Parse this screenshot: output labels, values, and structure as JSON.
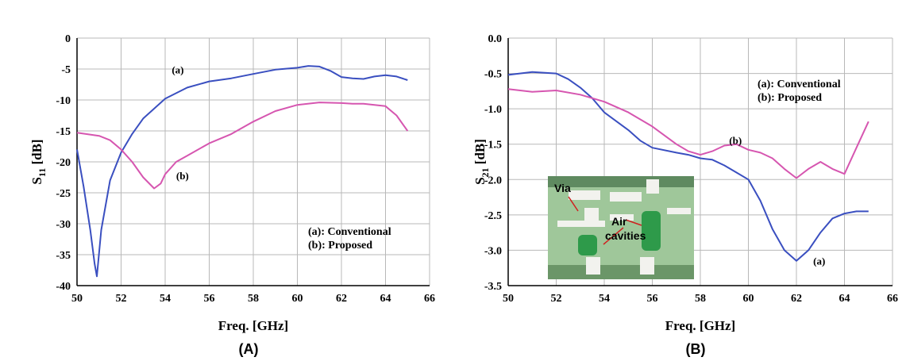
{
  "chart_data": [
    {
      "type": "line",
      "panel_label": "(A)",
      "xlabel": "Freq. [GHz]",
      "ylabel_main": "S",
      "ylabel_sub": "11",
      "ylabel_unit": " [dB]",
      "xlim": [
        50,
        66
      ],
      "ylim": [
        -40,
        0
      ],
      "xticks": [
        50,
        52,
        54,
        56,
        58,
        60,
        62,
        64,
        66
      ],
      "yticks": [
        0,
        -5,
        -10,
        -15,
        -20,
        -25,
        -30,
        -35,
        -40
      ],
      "ytick_labels": [
        "0",
        "-5",
        "-10",
        "-15",
        "-20",
        "-25",
        "-30",
        "-35",
        "-40"
      ],
      "grid": true,
      "legend": [
        "(a): Conventional",
        "(b): Proposed"
      ],
      "legend_position": "bottom-right",
      "series": [
        {
          "label": "(a)",
          "color": "#3a4fc0",
          "x": [
            50,
            50.3,
            50.6,
            50.8,
            50.9,
            51.1,
            51.5,
            52,
            52.5,
            53,
            54,
            55,
            56,
            57,
            58,
            59,
            60,
            60.5,
            61,
            61.5,
            62,
            62.5,
            63,
            63.5,
            64,
            64.5,
            65
          ],
          "y": [
            -18,
            -24,
            -31,
            -36.5,
            -38.5,
            -31,
            -23,
            -18.5,
            -15.5,
            -13,
            -9.8,
            -8,
            -7,
            -6.5,
            -5.8,
            -5.1,
            -4.8,
            -4.5,
            -4.6,
            -5.3,
            -6.3,
            -6.5,
            -6.6,
            -6.2,
            -6,
            -6.2,
            -6.8
          ]
        },
        {
          "label": "(b)",
          "color": "#d656b0",
          "x": [
            50,
            51,
            51.5,
            52,
            52.5,
            53,
            53.5,
            53.8,
            54,
            54.5,
            55,
            56,
            57,
            58,
            59,
            60,
            61,
            62,
            62.5,
            63,
            64,
            64.5,
            65
          ],
          "y": [
            -15.3,
            -15.8,
            -16.5,
            -18,
            -20,
            -22.5,
            -24.3,
            -23.5,
            -22,
            -20,
            -19,
            -17,
            -15.5,
            -13.5,
            -11.8,
            -10.8,
            -10.4,
            -10.5,
            -10.6,
            -10.6,
            -11,
            -12.5,
            -15
          ]
        }
      ],
      "annotations": [
        {
          "text": "(a)",
          "x": 54.3,
          "y": -5.7
        },
        {
          "text": "(b)",
          "x": 54.5,
          "y": -22.8
        }
      ]
    },
    {
      "type": "line",
      "panel_label": "(B)",
      "xlabel": "Freq. [GHz]",
      "ylabel_main": "S",
      "ylabel_sub": "21",
      "ylabel_unit": " [dB]",
      "xlim": [
        50,
        66
      ],
      "ylim": [
        -3.5,
        0
      ],
      "xticks": [
        50,
        52,
        54,
        56,
        58,
        60,
        62,
        64,
        66
      ],
      "yticks": [
        0,
        -0.5,
        -1,
        -1.5,
        -2,
        -2.5,
        -3,
        -3.5
      ],
      "ytick_labels": [
        "0.0",
        "-0.5",
        "-1.0",
        "-1.5",
        "-2.0",
        "-2.5",
        "-3.0",
        "-3.5"
      ],
      "grid": true,
      "legend": [
        "(a): Conventional",
        "(b): Proposed"
      ],
      "legend_position": "top-right",
      "series": [
        {
          "label": "(a)",
          "color": "#3a4fc0",
          "x": [
            50,
            51,
            52,
            52.5,
            53,
            53.5,
            54,
            55,
            55.5,
            56,
            57,
            57.5,
            58,
            58.5,
            59,
            59.5,
            60,
            60.5,
            61,
            61.5,
            62,
            62.5,
            63,
            63.5,
            64,
            64.5,
            65
          ],
          "y": [
            -0.52,
            -0.48,
            -0.5,
            -0.58,
            -0.7,
            -0.85,
            -1.05,
            -1.3,
            -1.45,
            -1.55,
            -1.62,
            -1.65,
            -1.7,
            -1.72,
            -1.8,
            -1.9,
            -2.0,
            -2.3,
            -2.7,
            -3.0,
            -3.15,
            -3.0,
            -2.75,
            -2.55,
            -2.48,
            -2.45,
            -2.45
          ]
        },
        {
          "label": "(b)",
          "color": "#d656b0",
          "x": [
            50,
            51,
            52,
            53,
            54,
            55,
            56,
            57,
            57.5,
            58,
            58.5,
            59,
            59.5,
            60,
            60.5,
            61,
            61.5,
            62,
            62.5,
            63,
            63.5,
            64,
            64.5,
            65
          ],
          "y": [
            -0.72,
            -0.76,
            -0.74,
            -0.8,
            -0.9,
            -1.05,
            -1.25,
            -1.5,
            -1.6,
            -1.65,
            -1.6,
            -1.52,
            -1.5,
            -1.58,
            -1.62,
            -1.7,
            -1.85,
            -1.98,
            -1.85,
            -1.75,
            -1.85,
            -1.92,
            -1.55,
            -1.18
          ]
        }
      ],
      "annotations": [
        {
          "text": "(b)",
          "x": 59.2,
          "y": -1.5
        },
        {
          "text": "(a)",
          "x": 62.7,
          "y": -3.2
        }
      ],
      "inset": {
        "labels": [
          "Via",
          "Air",
          "cavities"
        ]
      }
    }
  ]
}
